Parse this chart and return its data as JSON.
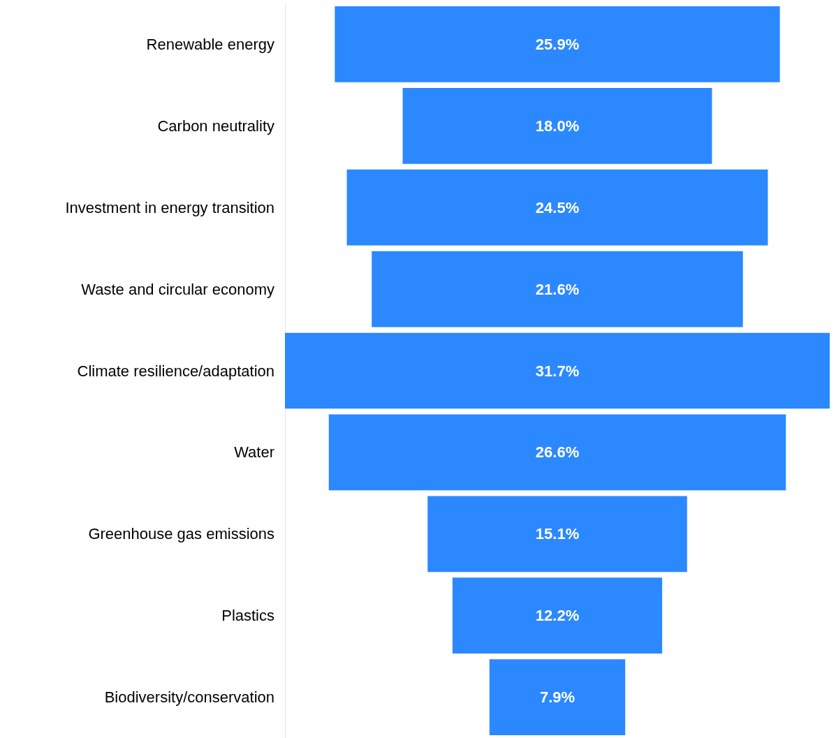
{
  "chart_data": {
    "type": "other",
    "categories": [
      "Renewable energy",
      "Carbon neutrality",
      "Investment in energy transition",
      "Waste and circular economy",
      "Climate resilience/adaptation",
      "Water",
      "Greenhouse gas emissions",
      "Plastics",
      "Biodiversity/conservation"
    ],
    "values": [
      25.9,
      18.0,
      24.5,
      21.6,
      31.7,
      26.6,
      15.1,
      12.2,
      7.9
    ],
    "value_labels": [
      "25.9%",
      "18.0%",
      "24.5%",
      "21.6%",
      "31.7%",
      "26.6%",
      "15.1%",
      "12.2%",
      "7.9%"
    ],
    "color": "#2b88ff"
  }
}
